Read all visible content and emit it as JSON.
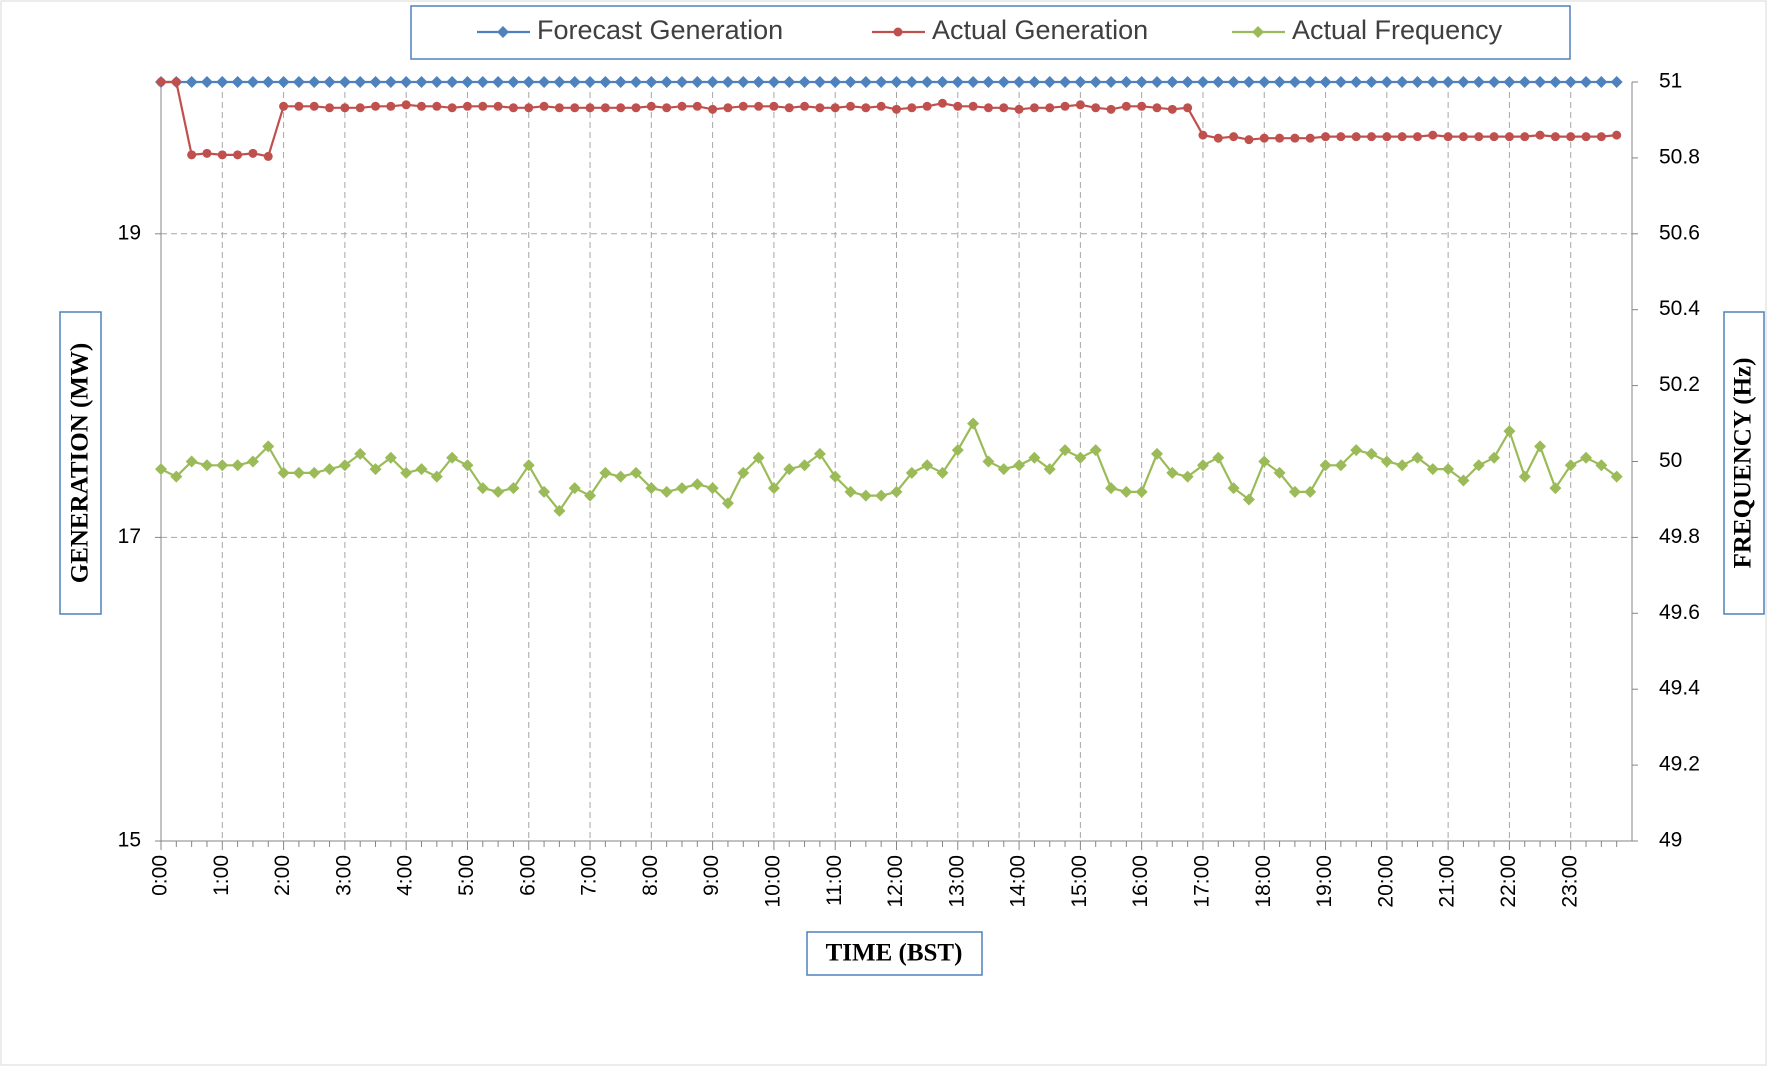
{
  "chart_data": {
    "type": "line",
    "x_label": "TIME (BST)",
    "y_label": "GENERATION (MW)",
    "y2_label": "FREQUENCY (Hz)",
    "categories": [
      "0:00",
      null,
      null,
      null,
      "1:00",
      null,
      null,
      null,
      "2:00",
      null,
      null,
      null,
      "3:00",
      null,
      null,
      null,
      "4:00",
      null,
      null,
      null,
      "5:00",
      null,
      null,
      null,
      "6:00",
      null,
      null,
      null,
      "7:00",
      null,
      null,
      null,
      "8:00",
      null,
      null,
      null,
      "9:00",
      null,
      null,
      null,
      "10:00",
      null,
      null,
      null,
      "11:00",
      null,
      null,
      null,
      "12:00",
      null,
      null,
      null,
      "13:00",
      null,
      null,
      null,
      "14:00",
      null,
      null,
      null,
      "15:00",
      null,
      null,
      null,
      "16:00",
      null,
      null,
      null,
      "17:00",
      null,
      null,
      null,
      "18:00",
      null,
      null,
      null,
      "19:00",
      null,
      null,
      null,
      "20:00",
      null,
      null,
      null,
      "21:00",
      null,
      null,
      null,
      "22:00",
      null,
      null,
      null,
      "23:00",
      null,
      null,
      null
    ],
    "ylim": [
      15,
      20
    ],
    "yticks": [
      15,
      17,
      19
    ],
    "y2lim": [
      49,
      51
    ],
    "y2ticks": [
      49,
      {
        "value": 49.2,
        "label": "49.2"
      },
      {
        "value": 49.4,
        "label": "49.4"
      },
      {
        "value": 49.6,
        "label": "49.6"
      },
      {
        "value": 49.8,
        "label": "49.8"
      },
      50,
      {
        "value": 50.2,
        "label": "50.2"
      },
      {
        "value": 50.4,
        "label": "50.4"
      },
      {
        "value": 50.6,
        "label": "50.6"
      },
      {
        "value": 50.8,
        "label": "50.8"
      },
      51
    ],
    "grid": true,
    "legend": "top",
    "series": [
      {
        "name": "Forecast Generation",
        "color": "#4f81bd",
        "marker": "diamond",
        "values": [
          20,
          20,
          20,
          20,
          20,
          20,
          20,
          20,
          20,
          20,
          20,
          20,
          20,
          20,
          20,
          20,
          20,
          20,
          20,
          20,
          20,
          20,
          20,
          20,
          20,
          20,
          20,
          20,
          20,
          20,
          20,
          20,
          20,
          20,
          20,
          20,
          20,
          20,
          20,
          20,
          20,
          20,
          20,
          20,
          20,
          20,
          20,
          20,
          20,
          20,
          20,
          20,
          20,
          20,
          20,
          20,
          20,
          20,
          20,
          20,
          20,
          20,
          20,
          20,
          20,
          20,
          20,
          20,
          20,
          20,
          20,
          20,
          20,
          20,
          20,
          20,
          20,
          20,
          20,
          20,
          20,
          20,
          20,
          20,
          20,
          20,
          20,
          20,
          20,
          20,
          20,
          20,
          20,
          20,
          20,
          20
        ]
      },
      {
        "name": "Actual Generation",
        "color": "#c0504d",
        "marker": "circle",
        "values": [
          20,
          20,
          19.52,
          19.53,
          19.52,
          19.52,
          19.53,
          19.51,
          19.84,
          19.84,
          19.84,
          19.83,
          19.83,
          19.83,
          19.84,
          19.84,
          19.85,
          19.84,
          19.84,
          19.83,
          19.84,
          19.84,
          19.84,
          19.83,
          19.83,
          19.84,
          19.83,
          19.83,
          19.83,
          19.83,
          19.83,
          19.83,
          19.84,
          19.83,
          19.84,
          19.84,
          19.82,
          19.83,
          19.84,
          19.84,
          19.84,
          19.83,
          19.84,
          19.83,
          19.83,
          19.84,
          19.83,
          19.84,
          19.82,
          19.83,
          19.84,
          19.86,
          19.84,
          19.84,
          19.83,
          19.83,
          19.82,
          19.83,
          19.83,
          19.84,
          19.85,
          19.83,
          19.82,
          19.84,
          19.84,
          19.83,
          19.82,
          19.83,
          19.65,
          19.63,
          19.64,
          19.62,
          19.63,
          19.63,
          19.63,
          19.63,
          19.64,
          19.64,
          19.64,
          19.64,
          19.64,
          19.64,
          19.64,
          19.65,
          19.64,
          19.64,
          19.64,
          19.64,
          19.64,
          19.64,
          19.65,
          19.64,
          19.64,
          19.64,
          19.64,
          19.65
        ]
      },
      {
        "name": "Actual Frequency",
        "color": "#9bbb59",
        "marker": "diamond",
        "axis": "y2",
        "values": [
          49.98,
          49.96,
          50,
          49.99,
          49.99,
          49.99,
          50,
          50.04,
          49.97,
          49.97,
          49.97,
          49.98,
          49.99,
          50.02,
          49.98,
          50.01,
          49.97,
          49.98,
          49.96,
          50.01,
          49.99,
          49.93,
          49.92,
          49.93,
          49.99,
          49.92,
          49.87,
          49.93,
          49.91,
          49.97,
          49.96,
          49.97,
          49.93,
          49.92,
          49.93,
          49.94,
          49.93,
          49.89,
          49.97,
          50.01,
          49.93,
          49.98,
          49.99,
          50.02,
          49.96,
          49.92,
          49.91,
          49.91,
          49.92,
          49.97,
          49.99,
          49.97,
          50.03,
          50.1,
          50,
          49.98,
          49.99,
          50.01,
          49.98,
          50.03,
          50.01,
          50.03,
          49.93,
          49.92,
          49.92,
          50.02,
          49.97,
          49.96,
          49.99,
          50.01,
          49.93,
          49.9,
          50,
          49.97,
          49.92,
          49.92,
          49.99,
          49.99,
          50.03,
          50.02,
          50,
          49.99,
          50.01,
          49.98,
          49.98,
          49.95,
          49.99,
          50.01,
          50.08,
          49.96,
          50.04,
          49.93,
          49.99,
          50.01,
          49.99,
          49.96
        ]
      }
    ]
  }
}
